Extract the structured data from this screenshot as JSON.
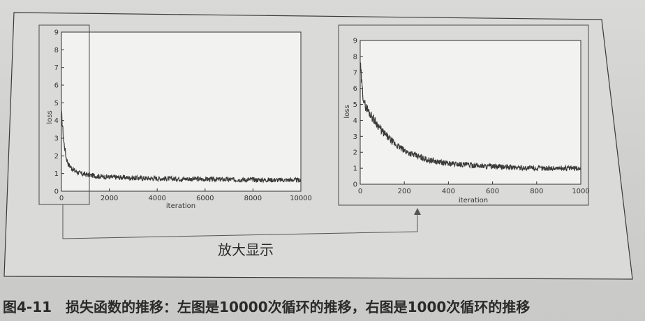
{
  "figure": {
    "caption": "图4-11　损失函数的推移：左图是10000次循环的推移，右图是1000次循环的推移",
    "zoom_label": "放大显示"
  },
  "colors": {
    "page": "#d7d7d5",
    "plot_bg": "#f2f2f0",
    "ink": "#333333",
    "line": "#3b3b3b"
  },
  "chart_data": [
    {
      "type": "line",
      "xlabel": "iteration",
      "ylabel": "loss",
      "xlim": [
        0,
        10000
      ],
      "ylim": [
        0,
        9
      ],
      "xticks": [
        0,
        2000,
        4000,
        6000,
        8000,
        10000
      ],
      "yticks": [
        0,
        1,
        2,
        3,
        4,
        5,
        6,
        7,
        8,
        9
      ],
      "grid": false,
      "series": [
        {
          "x": [
            0,
            50,
            100,
            200,
            300,
            500,
            800,
            1000,
            1500,
            2000,
            3000,
            4000,
            5000,
            6000,
            7000,
            8000,
            9000,
            10000
          ],
          "y": [
            4.4,
            3.6,
            2.8,
            1.9,
            1.5,
            1.2,
            1.0,
            0.95,
            0.85,
            0.8,
            0.75,
            0.72,
            0.7,
            0.68,
            0.66,
            0.65,
            0.64,
            0.63
          ]
        }
      ]
    },
    {
      "type": "line",
      "xlabel": "iteration",
      "ylabel": "loss",
      "xlim": [
        0,
        1000
      ],
      "ylim": [
        0,
        9
      ],
      "xticks": [
        0,
        200,
        400,
        600,
        800,
        1000
      ],
      "yticks": [
        0,
        1,
        2,
        3,
        4,
        5,
        6,
        7,
        8,
        9
      ],
      "grid": false,
      "series": [
        {
          "x": [
            0,
            10,
            20,
            50,
            100,
            150,
            200,
            250,
            300,
            350,
            400,
            450,
            500,
            600,
            700,
            800,
            900,
            1000
          ],
          "y": [
            7.5,
            5.8,
            5.0,
            4.3,
            3.3,
            2.6,
            2.1,
            1.8,
            1.55,
            1.4,
            1.3,
            1.25,
            1.2,
            1.1,
            1.05,
            1.0,
            1.0,
            1.0
          ]
        }
      ]
    }
  ]
}
